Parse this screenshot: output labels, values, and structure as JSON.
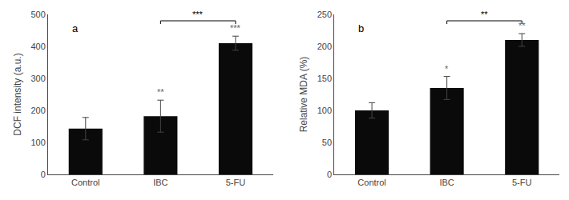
{
  "chart_data": [
    {
      "type": "bar",
      "title": "a",
      "categories": [
        "Control",
        "IBC",
        "5-FU"
      ],
      "values": [
        143,
        182,
        410
      ],
      "errors": [
        35,
        50,
        22
      ],
      "ylabel": "DCF intensity (a.u.)",
      "ylim": [
        0,
        500
      ],
      "yticks": [
        0,
        100,
        200,
        300,
        400,
        500
      ],
      "color": "#0a0a0a",
      "grid": false,
      "significance": [
        null,
        "**",
        "***"
      ],
      "bracket": {
        "from": "IBC",
        "to": "5-FU",
        "y": 480,
        "label": "***"
      }
    },
    {
      "type": "bar",
      "title": "b",
      "categories": [
        "Control",
        "IBC",
        "5-FU"
      ],
      "values": [
        100,
        135,
        210
      ],
      "errors": [
        12,
        18,
        10
      ],
      "ylabel": "Relative MDA (%)",
      "ylim": [
        0,
        250
      ],
      "yticks": [
        0,
        50,
        100,
        150,
        200,
        250
      ],
      "color": "#0a0a0a",
      "grid": false,
      "significance": [
        null,
        "*",
        "**"
      ],
      "bracket": {
        "from": "IBC",
        "to": "5-FU",
        "y": 240,
        "label": "**"
      }
    }
  ]
}
